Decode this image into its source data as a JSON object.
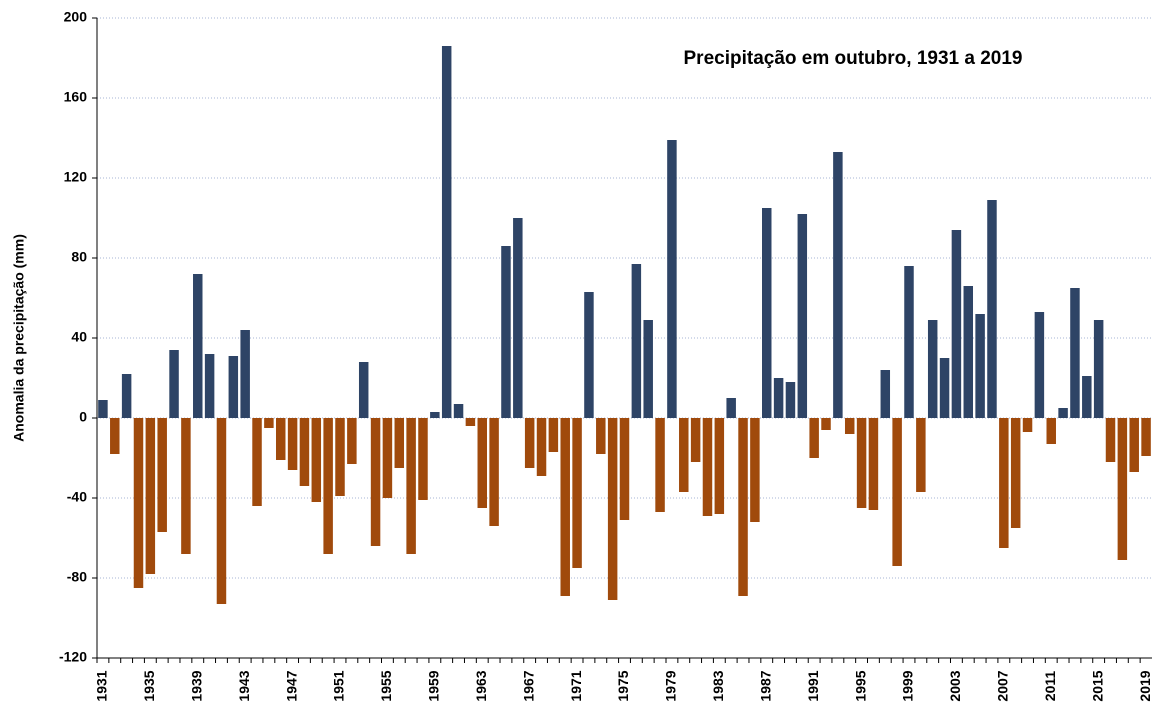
{
  "chart_data": {
    "type": "bar",
    "title": "Precipitação em outubro, 1931 a 2019",
    "y_label": "Anomalia da precipitação (mm)",
    "categories": [
      "1931",
      null,
      null,
      null,
      "1935",
      null,
      null,
      null,
      "1939",
      null,
      null,
      null,
      "1943",
      null,
      null,
      null,
      "1947",
      null,
      null,
      null,
      "1951",
      null,
      null,
      null,
      "1955",
      null,
      null,
      null,
      "1959",
      null,
      null,
      null,
      "1963",
      null,
      null,
      null,
      "1967",
      null,
      null,
      null,
      "1971",
      null,
      null,
      null,
      "1975",
      null,
      null,
      null,
      "1979",
      null,
      null,
      null,
      "1983",
      null,
      null,
      null,
      "1987",
      null,
      null,
      null,
      "1991",
      null,
      null,
      null,
      "1995",
      null,
      null,
      null,
      "1999",
      null,
      null,
      null,
      "2003",
      null,
      null,
      null,
      "2007",
      null,
      null,
      null,
      "2011",
      null,
      null,
      null,
      "2015",
      null,
      null,
      null,
      "2019"
    ],
    "values": [
      9,
      -18,
      22,
      -85,
      -78,
      -57,
      34,
      -68,
      72,
      32,
      -93,
      31,
      44,
      -44,
      -5,
      -21,
      -26,
      -34,
      -42,
      -68,
      -39,
      -23,
      28,
      -64,
      -40,
      -25,
      -68,
      -41,
      3,
      186,
      7,
      -4,
      -45,
      -54,
      86,
      100,
      -25,
      -29,
      -17,
      -89,
      -75,
      63,
      -18,
      -91,
      -51,
      77,
      49,
      -47,
      139,
      -37,
      -22,
      -49,
      -48,
      10,
      -89,
      -52,
      105,
      20,
      18,
      102,
      -20,
      -6,
      133,
      -8,
      -45,
      -46,
      24,
      -74,
      76,
      -37,
      49,
      30,
      94,
      66,
      52,
      109,
      -65,
      -55,
      -7,
      53,
      -13,
      5,
      65,
      21,
      49,
      -22,
      -71,
      -27,
      -19
    ],
    "positive_color": "#2e4466",
    "negative_color": "#a04a0c",
    "ylim": [
      -120,
      200
    ],
    "yticks": [
      -120,
      -80,
      -40,
      0,
      40,
      80,
      120,
      160,
      200
    ],
    "grid": true
  }
}
